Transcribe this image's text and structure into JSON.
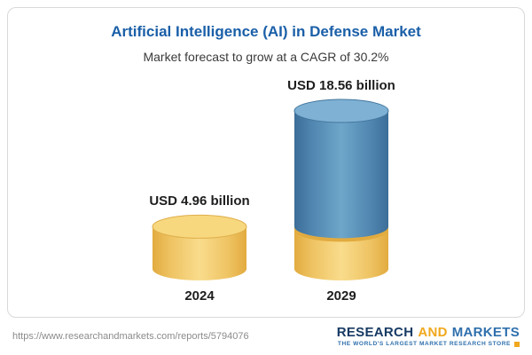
{
  "chart_data": {
    "type": "bar",
    "variant": "3d-cylinder",
    "title": "Artificial Intelligence (AI) in Defense Market",
    "subtitle": "Market forecast to grow at a CAGR of 30.2%",
    "unit": "USD billion",
    "cagr_pct": 30.2,
    "categories": [
      "2024",
      "2029"
    ],
    "values": [
      4.96,
      18.56
    ],
    "bars": [
      {
        "category": "2024",
        "value": 4.96,
        "value_label": "USD 4.96 billion",
        "color": "#f2cd6a"
      },
      {
        "category": "2029",
        "value": 18.56,
        "value_label": "USD 18.56 billion",
        "color": "#568fb8",
        "base_segment_value": 4.96,
        "base_segment_color": "#f2cd6a"
      }
    ],
    "ylim": [
      0,
      18.56
    ],
    "xlabel": "",
    "ylabel": "",
    "legend": "none",
    "grid": false
  },
  "footer": {
    "url": "https://www.researchandmarkets.com/reports/5794076",
    "logo": {
      "word1": "RESEARCH",
      "word2": "AND",
      "word3": "MARKETS",
      "tagline": "THE WORLD'S LARGEST MARKET RESEARCH STORE"
    }
  },
  "colors": {
    "title_blue": "#1a5fa8",
    "gold": "#f2cd6a",
    "gold_dark": "#e2ab3f",
    "blue": "#568fb8",
    "logo_navy": "#173a63",
    "logo_gold": "#f0a81e",
    "logo_blue": "#2f70ad"
  }
}
